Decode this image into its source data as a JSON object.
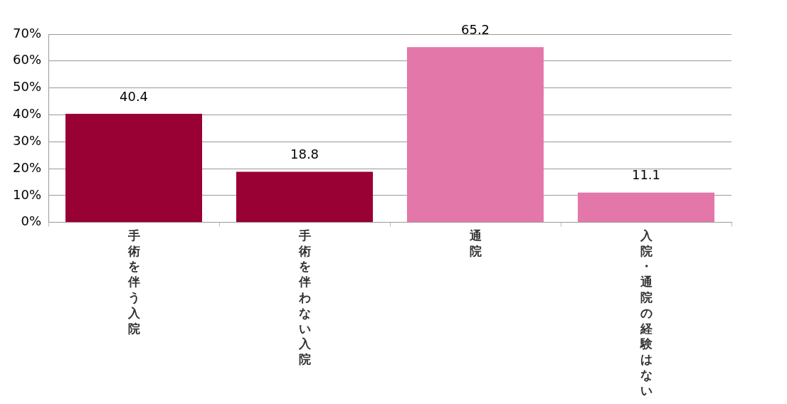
{
  "chart_data": {
    "type": "bar",
    "categories": [
      "手術を伴う入院",
      "手術を伴わない入院",
      "通院",
      "入院・通院の経験はない"
    ],
    "values": [
      40.4,
      18.8,
      65.2,
      11.1
    ],
    "colors": [
      "#990033",
      "#990033",
      "#e377a9",
      "#e377a9"
    ],
    "ylim": [
      0,
      70
    ],
    "yticks": [
      {
        "value": 0,
        "label": "0%"
      },
      {
        "value": 10,
        "label": "10%"
      },
      {
        "value": 20,
        "label": "20%"
      },
      {
        "value": 30,
        "label": "30%"
      },
      {
        "value": 40,
        "label": "40%"
      },
      {
        "value": 50,
        "label": "50%"
      },
      {
        "value": 60,
        "label": "60%"
      },
      {
        "value": 70,
        "label": "70%"
      }
    ],
    "grid": "y",
    "data_labels": true,
    "legend": false
  }
}
